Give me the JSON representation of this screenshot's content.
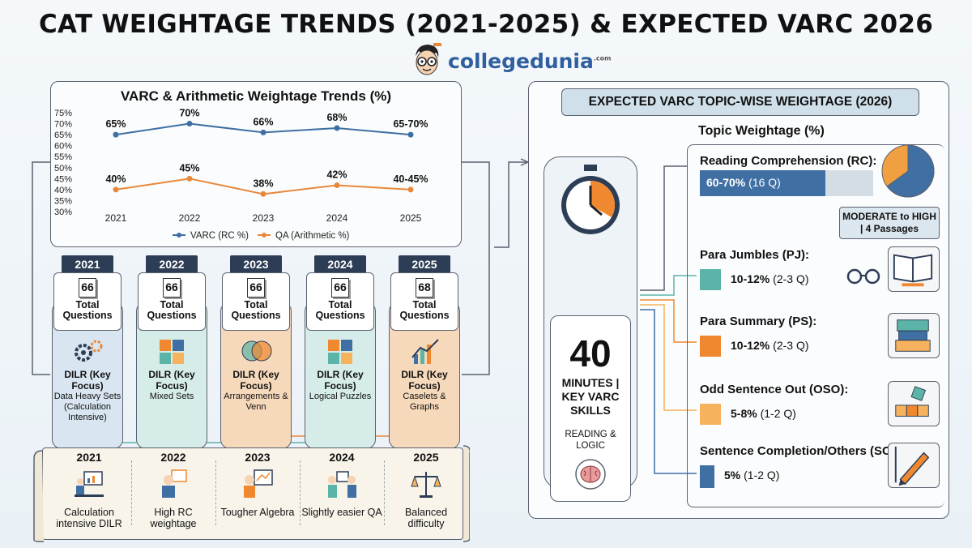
{
  "title": "CAT WEIGHTAGE TRENDS (2021-2025) & EXPECTED VARC 2026",
  "logo": {
    "brand": "collegedunia",
    "suffix": ".com"
  },
  "chart_data": {
    "type": "line",
    "title": "VARC & Arithmetic Weightage Trends (%)",
    "x": [
      "2021",
      "2022",
      "2023",
      "2024",
      "2025"
    ],
    "ylim": [
      30,
      75
    ],
    "yticks": [
      "30%",
      "35%",
      "40%",
      "45%",
      "50%",
      "55%",
      "60%",
      "65%",
      "70%",
      "75%"
    ],
    "legend_position": "bottom",
    "series": [
      {
        "name": "VARC (RC %)",
        "values": [
          65,
          70,
          66,
          68,
          65
        ],
        "labels": [
          "65%",
          "70%",
          "66%",
          "68%",
          "65-70%"
        ],
        "color": "#3f6fa3"
      },
      {
        "name": "QA (Arithmetic %)",
        "values": [
          40,
          45,
          38,
          42,
          40
        ],
        "labels": [
          "40%",
          "45%",
          "38%",
          "42%",
          "40-45%"
        ],
        "color": "#e8883a"
      }
    ]
  },
  "years": [
    {
      "year": "2021",
      "questions": "66",
      "total_label": "Total Questions",
      "focus": "DILR (Key Focus)",
      "desc": "Data Heavy Sets (Calculation Intensive)",
      "theme": "blue",
      "icon": "gears-icon"
    },
    {
      "year": "2022",
      "questions": "66",
      "total_label": "Total Questions",
      "focus": "DILR (Key Focus)",
      "desc": "Mixed Sets",
      "theme": "teal",
      "icon": "puzzle-icon"
    },
    {
      "year": "2023",
      "questions": "66",
      "total_label": "Total Questions",
      "focus": "DILR (Key Focus)",
      "desc": "Arrangements & Venn",
      "theme": "orange",
      "icon": "venn-icon"
    },
    {
      "year": "2024",
      "questions": "66",
      "total_label": "Total Questions",
      "focus": "DILR (Key Focus)",
      "desc": "Logical Puzzles",
      "theme": "teal",
      "icon": "puzzle-icon"
    },
    {
      "year": "2025",
      "questions": "68",
      "total_label": "Total Questions",
      "focus": "DILR (Key Focus)",
      "desc": "Caselets & Graphs",
      "theme": "orange",
      "icon": "graph-icon"
    }
  ],
  "timeline": [
    {
      "year": "2021",
      "text": "Calculation intensive DILR",
      "icon": "desk-chart-icon"
    },
    {
      "year": "2022",
      "text": "High RC weightage",
      "icon": "reader-icon"
    },
    {
      "year": "2023",
      "text": "Tougher Algebra",
      "icon": "teacher-icon"
    },
    {
      "year": "2024",
      "text": "Slightly easier QA",
      "icon": "discussion-icon"
    },
    {
      "year": "2025",
      "text": "Balanced difficulty",
      "icon": "scales-icon"
    }
  ],
  "right": {
    "header": "EXPECTED VARC TOPIC-WISE WEIGHTAGE (2026)",
    "topic_title": "Topic Weightage (%)",
    "minutes": "40",
    "minutes_label": "MINUTES | KEY VARC SKILLS",
    "skills": "READING & LOGIC",
    "badge": "MODERATE to HIGH | 4 Passages",
    "topics": [
      {
        "name": "Reading Comprehension (RC):",
        "range": "60-70%",
        "qs": "(16 Q)",
        "pct": 65,
        "color": "#3f6fa3",
        "icon": "pie-icon"
      },
      {
        "name": "Para Jumbles (PJ):",
        "range": "10-12%",
        "qs": "(2-3 Q)",
        "pct": 11,
        "color": "#5cb3a8",
        "icon": "book-icon"
      },
      {
        "name": "Para Summary (PS):",
        "range": "10-12%",
        "qs": "(2-3 Q)",
        "pct": 11,
        "color": "#f0882f",
        "icon": "books-icon"
      },
      {
        "name": "Odd Sentence Out (OSO):",
        "range": "5-8%",
        "qs": "(1-2 Q)",
        "pct": 6.5,
        "color": "#f6b25c",
        "icon": "blocks-icon"
      },
      {
        "name": "Sentence Completion/Others (SCO):",
        "range": "5%",
        "qs": "(1-2 Q)",
        "pct": 5,
        "color": "#3f6fa3",
        "icon": "pencil-icon"
      }
    ]
  }
}
